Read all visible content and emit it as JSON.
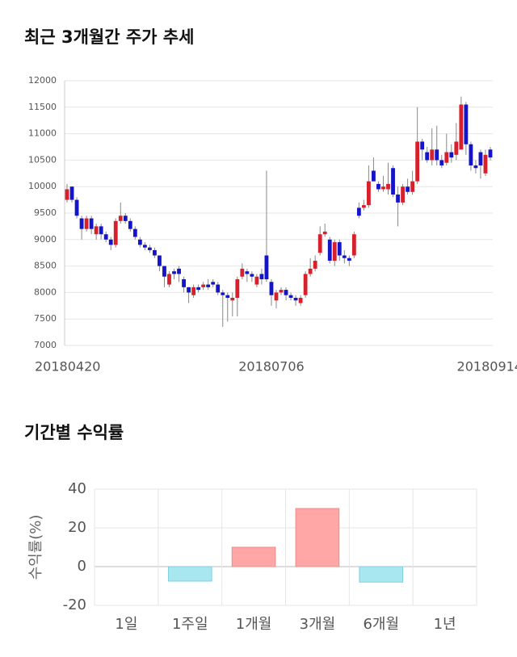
{
  "chart_data": [
    {
      "type": "candlestick",
      "title": "최근 3개월간 주가 추세",
      "up_color": "#d7202b",
      "down_color": "#1414c8",
      "grid": true,
      "ylim": [
        7000,
        12000
      ],
      "yticks": [
        7000,
        7500,
        8000,
        8500,
        9000,
        9500,
        10000,
        10500,
        11000,
        11500,
        12000
      ],
      "categories": [
        "20180420",
        null,
        null,
        null,
        null,
        null,
        null,
        null,
        null,
        null,
        null,
        null,
        null,
        null,
        null,
        null,
        null,
        null,
        null,
        null,
        null,
        null,
        null,
        null,
        null,
        null,
        null,
        null,
        null,
        null,
        null,
        null,
        null,
        null,
        null,
        null,
        null,
        null,
        null,
        null,
        null,
        null,
        "20180706",
        null,
        null,
        null,
        null,
        null,
        null,
        null,
        null,
        null,
        null,
        null,
        null,
        null,
        null,
        null,
        null,
        null,
        null,
        null,
        null,
        null,
        null,
        null,
        null,
        null,
        null,
        null,
        null,
        null,
        null,
        null,
        null,
        null,
        null,
        null,
        null,
        null,
        null,
        null,
        null,
        null,
        null,
        null,
        null,
        "20180914"
      ],
      "open": [
        9750,
        10000,
        9750,
        9400,
        9200,
        9400,
        9100,
        9250,
        9100,
        9000,
        8900,
        9350,
        9450,
        9350,
        9200,
        9000,
        8900,
        8850,
        8800,
        8700,
        8500,
        8150,
        8400,
        8450,
        8250,
        8100,
        7950,
        8100,
        8100,
        8150,
        8200,
        8150,
        8000,
        7950,
        7850,
        7900,
        8300,
        8400,
        8350,
        8150,
        8350,
        8700,
        8200,
        7850,
        8000,
        8050,
        7950,
        7900,
        7800,
        7950,
        8350,
        8450,
        8750,
        9100,
        9000,
        8600,
        8950,
        8700,
        8650,
        8700,
        9600,
        9600,
        9650,
        10300,
        10050,
        9950,
        9950,
        10350,
        9850,
        9700,
        10000,
        9900,
        10100,
        10850,
        10650,
        10500,
        10700,
        10500,
        10450,
        10650,
        10600,
        10700,
        11550,
        10800,
        10400,
        10650,
        10250,
        10700
      ],
      "high": [
        10050,
        10000,
        9800,
        9450,
        9450,
        9450,
        9300,
        9300,
        9150,
        9050,
        9400,
        9700,
        9500,
        9400,
        9250,
        9050,
        8950,
        8900,
        8850,
        8700,
        8500,
        8400,
        8450,
        8500,
        8300,
        8100,
        8150,
        8150,
        8200,
        8250,
        8250,
        8200,
        8050,
        8000,
        8000,
        8300,
        8550,
        8450,
        8400,
        8350,
        8450,
        10300,
        8250,
        8050,
        8100,
        8100,
        8000,
        7950,
        7950,
        8400,
        8650,
        8700,
        9250,
        9300,
        9050,
        9000,
        9000,
        8800,
        8700,
        9150,
        9700,
        9750,
        10400,
        10550,
        10100,
        10200,
        10450,
        10400,
        10000,
        10050,
        10150,
        10300,
        11500,
        10900,
        10750,
        11100,
        11150,
        10600,
        11000,
        10800,
        11200,
        11700,
        11600,
        10850,
        10500,
        10700,
        10700,
        10750
      ],
      "low": [
        9700,
        9700,
        9400,
        9000,
        9150,
        9100,
        9000,
        9000,
        8950,
        8800,
        8850,
        9300,
        9300,
        9150,
        9000,
        8850,
        8800,
        8750,
        8650,
        8400,
        8100,
        8100,
        8250,
        8200,
        8000,
        7800,
        7900,
        8000,
        8050,
        8050,
        8100,
        7950,
        7350,
        7450,
        7550,
        7550,
        8250,
        8200,
        8200,
        8100,
        8150,
        8200,
        7750,
        7700,
        7950,
        7850,
        7850,
        7750,
        7750,
        7900,
        8300,
        8400,
        8700,
        9050,
        8550,
        8500,
        8600,
        8550,
        8500,
        8650,
        9400,
        9550,
        9600,
        10100,
        9900,
        9900,
        9850,
        9800,
        9250,
        9650,
        9850,
        9850,
        10050,
        10500,
        10450,
        10400,
        10400,
        10350,
        10400,
        10450,
        10500,
        10700,
        10600,
        10300,
        10250,
        10150,
        10200,
        10500
      ],
      "close": [
        9950,
        9750,
        9450,
        9200,
        9400,
        9200,
        9250,
        9100,
        9000,
        8900,
        9350,
        9450,
        9350,
        9200,
        9050,
        8900,
        8850,
        8800,
        8700,
        8500,
        8300,
        8350,
        8350,
        8350,
        8100,
        8000,
        8100,
        8050,
        8150,
        8100,
        8150,
        8000,
        7950,
        7900,
        7900,
        8250,
        8450,
        8350,
        8300,
        8300,
        8250,
        8250,
        7950,
        8000,
        8050,
        7950,
        7900,
        7850,
        7900,
        8350,
        8450,
        8600,
        9100,
        9150,
        8600,
        8950,
        8700,
        8650,
        8600,
        9100,
        9450,
        9650,
        10100,
        10100,
        9950,
        10000,
        10050,
        9850,
        9700,
        10000,
        9900,
        10100,
        10850,
        10700,
        10500,
        10700,
        10500,
        10400,
        10650,
        10550,
        10850,
        11550,
        10800,
        10400,
        10350,
        10400,
        10600,
        10550
      ]
    },
    {
      "type": "bar",
      "title": "기간별 수익률",
      "ylabel": "수익률(%)",
      "grid": true,
      "categories": [
        "1일",
        "1주일",
        "1개월",
        "3개월",
        "6개월",
        "1년"
      ],
      "values": [
        0,
        -7.5,
        10,
        30,
        -8,
        0
      ],
      "colors": [
        "#ffa6a6",
        "#a8e6f0",
        "#ffa6a6",
        "#ffa6a6",
        "#a8e6f0",
        "#ffa6a6"
      ],
      "ylim": [
        -20,
        40
      ],
      "yticks": [
        -20,
        0,
        20,
        40
      ]
    }
  ]
}
